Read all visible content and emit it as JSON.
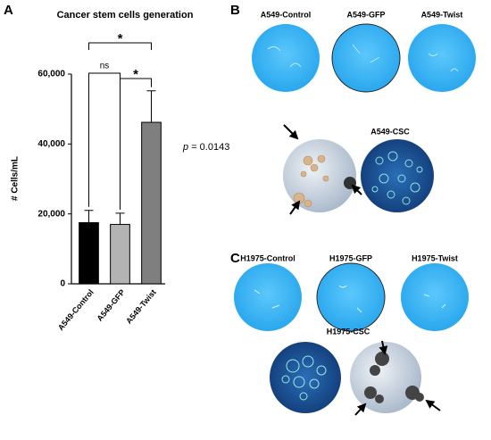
{
  "panel_labels": [
    "A",
    "B",
    "C"
  ],
  "chart_data": {
    "type": "bar",
    "title": "Cancer stem cells generation",
    "y_label": "# Cells/mL",
    "categories": [
      "A549-Control",
      "A549-GFP",
      "A549-Twist"
    ],
    "values": [
      17500,
      17000,
      46200
    ],
    "errors": [
      3500,
      3200,
      9000
    ],
    "colors": [
      "#000000",
      "#b3b3b3",
      "#7f7f7f"
    ],
    "ylim": [
      0,
      60000
    ],
    "yticks": [
      0,
      {
        "value": 20000,
        "label": "20,000"
      },
      {
        "value": 40000,
        "label": "40,000"
      },
      {
        "value": 60000,
        "label": "60,000"
      }
    ],
    "significance": [
      {
        "from": 0,
        "to": 1,
        "label": "ns"
      },
      {
        "from": 1,
        "to": 2,
        "label": "*"
      },
      {
        "from": 0,
        "to": 2,
        "label": "*"
      }
    ],
    "annotation": {
      "symbol": "p",
      "text": "= 0.0143"
    }
  },
  "panel_b": {
    "images": [
      "A549-Control",
      "A549-GFP",
      "A549-Twist"
    ],
    "csc": "A549-CSC"
  },
  "panel_c": {
    "images": [
      "H1975-Control",
      "H1975-GFP",
      "H1975-Twist"
    ],
    "csc": "H1975-CSC"
  }
}
